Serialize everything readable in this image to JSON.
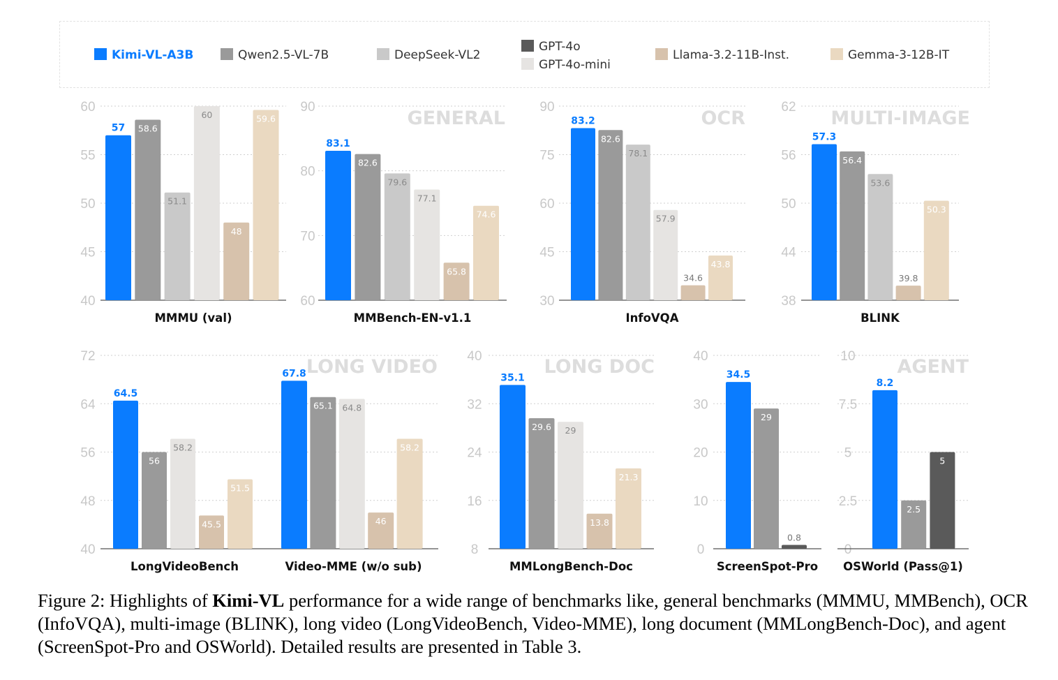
{
  "colors": {
    "kimi": "#0a7cff",
    "qwen": "#9a9a9a",
    "deepseek": "#c9c9c9",
    "gpt4o": "#5a5a5a",
    "gpt4o_mini": "#e6e4e2",
    "llama": "#d7c2ac",
    "gemma": "#ead9c1"
  },
  "legend": [
    {
      "label": "Kimi-VL-A3B",
      "color_key": "kimi"
    },
    {
      "label": "Qwen2.5-VL-7B",
      "color_key": "qwen"
    },
    {
      "label": "DeepSeek-VL2",
      "color_key": "deepseek"
    },
    {
      "label": "GPT-4o",
      "color_key": "gpt4o"
    },
    {
      "label": "GPT-4o-mini",
      "color_key": "gpt4o_mini"
    },
    {
      "label": "Llama-3.2-11B-Inst.",
      "color_key": "llama"
    },
    {
      "label": "Gemma-3-12B-IT",
      "color_key": "gemma"
    }
  ],
  "section_labels": [
    "GENERAL",
    "OCR",
    "MULTI-IMAGE",
    "LONG VIDEO",
    "LONG DOC",
    "AGENT"
  ],
  "chart_data": [
    {
      "type": "bar",
      "title": "MMMU (val)",
      "yticks": [
        40,
        45,
        50,
        55,
        60
      ],
      "ylim": [
        40,
        60
      ],
      "series": [
        {
          "name": "Kimi-VL-A3B",
          "value": 57
        },
        {
          "name": "Qwen2.5-VL-7B",
          "value": 58.6
        },
        {
          "name": "DeepSeek-VL2",
          "value": 51.1
        },
        {
          "name": "GPT-4o-mini",
          "value": 60
        },
        {
          "name": "Llama-3.2-11B-Inst.",
          "value": 48
        },
        {
          "name": "Gemma-3-12B-IT",
          "value": 59.6
        }
      ]
    },
    {
      "type": "bar",
      "title": "MMBench-EN-v1.1",
      "yticks": [
        60,
        70,
        80,
        90
      ],
      "ylim": [
        60,
        90
      ],
      "series": [
        {
          "name": "Kimi-VL-A3B",
          "value": 83.1
        },
        {
          "name": "Qwen2.5-VL-7B",
          "value": 82.6
        },
        {
          "name": "DeepSeek-VL2",
          "value": 79.6
        },
        {
          "name": "GPT-4o-mini",
          "value": 77.1
        },
        {
          "name": "Llama-3.2-11B-Inst.",
          "value": 65.8
        },
        {
          "name": "Gemma-3-12B-IT",
          "value": 74.6
        }
      ]
    },
    {
      "type": "bar",
      "title": "InfoVQA",
      "yticks": [
        30,
        45,
        60,
        75,
        90
      ],
      "ylim": [
        30,
        90
      ],
      "series": [
        {
          "name": "Kimi-VL-A3B",
          "value": 83.2
        },
        {
          "name": "Qwen2.5-VL-7B",
          "value": 82.6
        },
        {
          "name": "DeepSeek-VL2",
          "value": 78.1
        },
        {
          "name": "GPT-4o-mini",
          "value": 57.9
        },
        {
          "name": "Llama-3.2-11B-Inst.",
          "value": 34.6
        },
        {
          "name": "Gemma-3-12B-IT",
          "value": 43.8
        }
      ]
    },
    {
      "type": "bar",
      "title": "BLINK",
      "yticks": [
        38,
        44,
        50,
        56,
        62
      ],
      "ylim": [
        38,
        62
      ],
      "series": [
        {
          "name": "Kimi-VL-A3B",
          "value": 57.3
        },
        {
          "name": "Qwen2.5-VL-7B",
          "value": 56.4
        },
        {
          "name": "DeepSeek-VL2",
          "value": 53.6
        },
        {
          "name": "Llama-3.2-11B-Inst.",
          "value": 39.8
        },
        {
          "name": "Gemma-3-12B-IT",
          "value": 50.3
        }
      ]
    },
    {
      "type": "bar",
      "title": "LongVideoBench",
      "yticks": [
        40,
        48,
        56,
        64,
        72
      ],
      "ylim": [
        40,
        72
      ],
      "series": [
        {
          "name": "Kimi-VL-A3B",
          "value": 64.5
        },
        {
          "name": "Qwen2.5-VL-7B",
          "value": 56
        },
        {
          "name": "GPT-4o-mini",
          "value": 58.2
        },
        {
          "name": "Llama-3.2-11B-Inst.",
          "value": 45.5
        },
        {
          "name": "Gemma-3-12B-IT",
          "value": 51.5
        }
      ]
    },
    {
      "type": "bar",
      "title": "Video-MME (w/o sub)",
      "yticks": [
        40,
        48,
        56,
        64,
        72
      ],
      "ylim": [
        40,
        72
      ],
      "series": [
        {
          "name": "Kimi-VL-A3B",
          "value": 67.8
        },
        {
          "name": "Qwen2.5-VL-7B",
          "value": 65.1
        },
        {
          "name": "GPT-4o-mini",
          "value": 64.8
        },
        {
          "name": "Llama-3.2-11B-Inst.",
          "value": 46
        },
        {
          "name": "Gemma-3-12B-IT",
          "value": 58.2
        }
      ]
    },
    {
      "type": "bar",
      "title": "MMLongBench-Doc",
      "yticks": [
        8,
        16,
        24,
        32,
        40
      ],
      "ylim": [
        8,
        40
      ],
      "series": [
        {
          "name": "Kimi-VL-A3B",
          "value": 35.1
        },
        {
          "name": "Qwen2.5-VL-7B",
          "value": 29.6
        },
        {
          "name": "GPT-4o-mini",
          "value": 29
        },
        {
          "name": "Llama-3.2-11B-Inst.",
          "value": 13.8
        },
        {
          "name": "Gemma-3-12B-IT",
          "value": 21.3
        }
      ]
    },
    {
      "type": "bar",
      "title": "ScreenSpot-Pro",
      "yticks": [
        0,
        10,
        20,
        30,
        40
      ],
      "ylim": [
        0,
        40
      ],
      "series": [
        {
          "name": "Kimi-VL-A3B",
          "value": 34.5
        },
        {
          "name": "Qwen2.5-VL-7B",
          "value": 29
        },
        {
          "name": "GPT-4o",
          "value": 0.8
        }
      ]
    },
    {
      "type": "bar",
      "title": "OSWorld (Pass@1)",
      "yticks": [
        "0",
        "2.5",
        "5",
        "7.5",
        "10"
      ],
      "ylim": [
        0,
        10
      ],
      "series": [
        {
          "name": "Kimi-VL-A3B",
          "value": 8.2
        },
        {
          "name": "Qwen2.5-VL-7B",
          "value": 2.5
        },
        {
          "name": "GPT-4o",
          "value": 5
        }
      ]
    }
  ],
  "caption": {
    "prefix": "Figure 2: Highlights of ",
    "bold": "Kimi-VL",
    "rest": " performance for a wide range of benchmarks like, general benchmarks (MMMU, MMBench), OCR (InfoVQA), multi-image (BLINK), long video (LongVideoBench, Video-MME), long document (MMLongBench-Doc), and agent (ScreenSpot-Pro and OSWorld). Detailed results are presented in Table 3."
  }
}
